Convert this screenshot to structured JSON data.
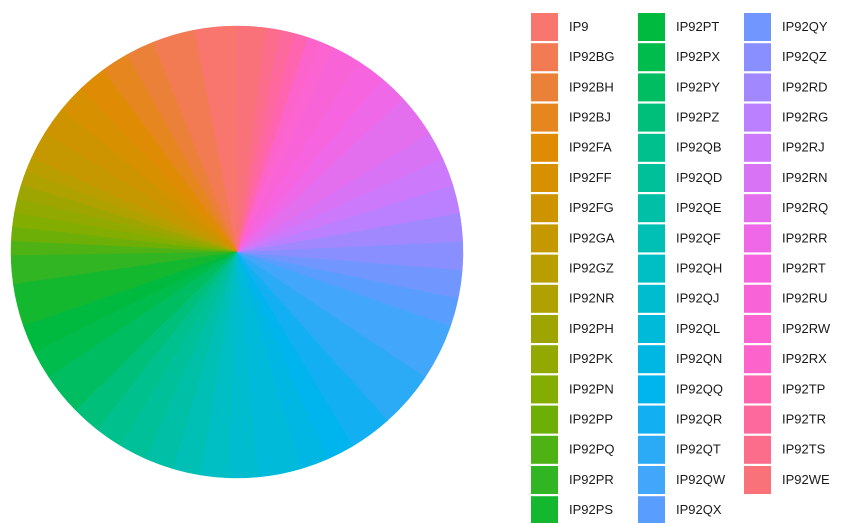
{
  "chart_data": {
    "type": "pie",
    "categories": [
      "IP9",
      "IP92BG",
      "IP92BH",
      "IP92BJ",
      "IP92FA",
      "IP92FF",
      "IP92FG",
      "IP92GA",
      "IP92GZ",
      "IP92NR",
      "IP92PH",
      "IP92PK",
      "IP92PN",
      "IP92PP",
      "IP92PQ",
      "IP92PR",
      "IP92PS",
      "IP92PT",
      "IP92PX",
      "IP92PY",
      "IP92PZ",
      "IP92QB",
      "IP92QD",
      "IP92QE",
      "IP92QF",
      "IP92QH",
      "IP92QJ",
      "IP92QL",
      "IP92QN",
      "IP92QQ",
      "IP92QR",
      "IP92QT",
      "IP92QW",
      "IP92QX",
      "IP92QY",
      "IP92QZ",
      "IP92RD",
      "IP92RG",
      "IP92RJ",
      "IP92RN",
      "IP92RQ",
      "IP92RR",
      "IP92RT",
      "IP92RU",
      "IP92RW",
      "IP92RX",
      "IP92TP",
      "IP92TR",
      "IP92TS",
      "IP92WE"
    ],
    "values": [
      3,
      3,
      2,
      2,
      2,
      2,
      2,
      2,
      1,
      1,
      1,
      1,
      1,
      1,
      1,
      2,
      3,
      2,
      2,
      3,
      2,
      2,
      2,
      2,
      2,
      2,
      2,
      3,
      2,
      2,
      3,
      4,
      4,
      2,
      2,
      2,
      2,
      2,
      2,
      2,
      3,
      2,
      2,
      2,
      1,
      1,
      1,
      1,
      1,
      2
    ],
    "colors": [
      "#F8766D",
      "#F27B53",
      "#EB8139",
      "#E5861F",
      "#DF8B04",
      "#D69000",
      "#CD9400",
      "#C59800",
      "#BA9E00",
      "#AEA100",
      "#9FA500",
      "#91A900",
      "#83AD00",
      "#6DAF07",
      "#4FB214",
      "#32B522",
      "#14B82F",
      "#00BA3F",
      "#00BC4C",
      "#00BD62",
      "#00BF7A",
      "#00C08D",
      "#00C09A",
      "#00BFA7",
      "#00BFB5",
      "#00BFC4",
      "#00BCCF",
      "#00BAD9",
      "#00B7E3",
      "#00B4EE",
      "#13AFF3",
      "#2BAAF6",
      "#42A6FA",
      "#599EFE",
      "#7197FF",
      "#8A8FFF",
      "#A288FF",
      "#BB80FF",
      "#CD79FB",
      "#D873F5",
      "#E36EEE",
      "#EE68E8",
      "#F664E0",
      "#F864D8",
      "#FB64D1",
      "#FD64CB",
      "#FF65AE",
      "#FD699D",
      "#FB6D8B",
      "#F9727A"
    ],
    "legend": "right"
  }
}
